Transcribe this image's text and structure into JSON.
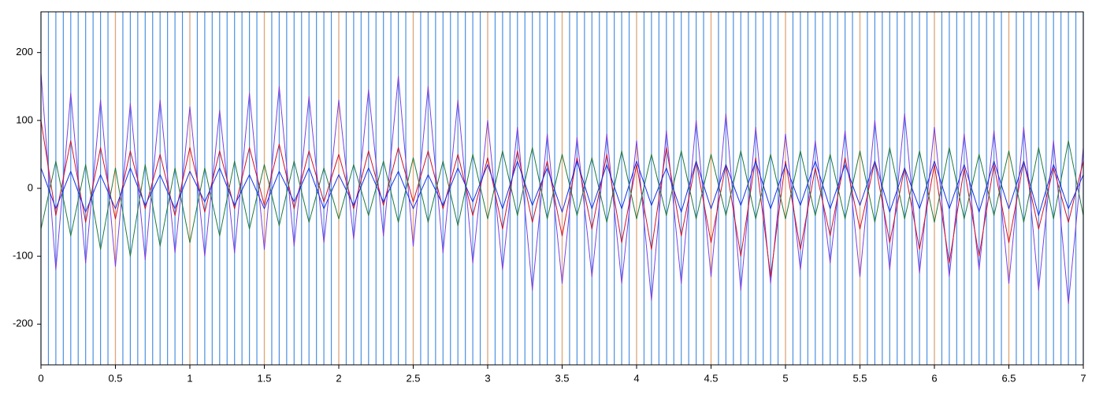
{
  "chart_data": {
    "type": "line",
    "xlim": [
      0,
      7
    ],
    "ylim": [
      -260,
      260
    ],
    "xticks": [
      0,
      0.5,
      1,
      1.5,
      2,
      2.5,
      3,
      3.5,
      4,
      4.5,
      5,
      5.5,
      6,
      6.5,
      7
    ],
    "yticks": [
      200,
      100,
      0,
      -100,
      -200
    ],
    "grid": true,
    "grid_color": "#f5a05a",
    "marker_color": "#4a90e2",
    "markers": [
      0,
      0.05,
      0.1,
      0.15,
      0.2,
      0.25,
      0.3,
      0.35,
      0.4,
      0.45,
      0.5,
      0.55,
      0.6,
      0.65,
      0.7,
      0.75,
      0.8,
      0.85,
      0.9,
      0.95,
      1,
      1.05,
      1.1,
      1.15,
      1.2,
      1.25,
      1.3,
      1.35,
      1.4,
      1.45,
      1.5,
      1.55,
      1.6,
      1.65,
      1.7,
      1.75,
      1.8,
      1.85,
      1.9,
      1.95,
      2,
      2.05,
      2.1,
      2.15,
      2.2,
      2.25,
      2.3,
      2.35,
      2.4,
      2.45,
      2.5,
      2.55,
      2.6,
      2.65,
      2.7,
      2.75,
      2.8,
      2.85,
      2.9,
      2.95,
      3,
      3.05,
      3.1,
      3.15,
      3.2,
      3.25,
      3.3,
      3.35,
      3.4,
      3.45,
      3.5,
      3.55,
      3.6,
      3.65,
      3.7,
      3.75,
      3.8,
      3.85,
      3.9,
      3.95,
      4,
      4.05,
      4.1,
      4.15,
      4.2,
      4.25,
      4.3,
      4.35,
      4.4,
      4.45,
      4.5,
      4.55,
      4.6,
      4.65,
      4.7,
      4.75,
      4.8,
      4.85,
      4.9,
      4.95,
      5,
      5.05,
      5.1,
      5.15,
      5.2,
      5.25,
      5.3,
      5.35,
      5.4,
      5.45,
      5.5,
      5.55,
      5.6,
      5.65,
      5.7,
      5.75,
      5.8,
      5.85,
      5.9,
      5.95,
      6,
      6.05,
      6.1,
      6.15,
      6.2,
      6.25,
      6.3,
      6.35,
      6.4,
      6.45,
      6.5,
      6.55,
      6.6,
      6.65,
      6.7,
      6.75,
      6.8,
      6.85,
      6.9,
      6.95,
      7
    ],
    "x": [
      0,
      0.1,
      0.2,
      0.3,
      0.4,
      0.5,
      0.6,
      0.7,
      0.8,
      0.9,
      1,
      1.1,
      1.2,
      1.3,
      1.4,
      1.5,
      1.6,
      1.7,
      1.8,
      1.9,
      2,
      2.1,
      2.2,
      2.3,
      2.4,
      2.5,
      2.6,
      2.7,
      2.8,
      2.9,
      3,
      3.1,
      3.2,
      3.3,
      3.4,
      3.5,
      3.6,
      3.7,
      3.8,
      3.9,
      4,
      4.1,
      4.2,
      4.3,
      4.4,
      4.5,
      4.6,
      4.7,
      4.8,
      4.9,
      5,
      5.1,
      5.2,
      5.3,
      5.4,
      5.5,
      5.6,
      5.7,
      5.8,
      5.9,
      6,
      6.1,
      6.2,
      6.3,
      6.4,
      6.5,
      6.6,
      6.7,
      6.8,
      6.9,
      7
    ],
    "series": [
      {
        "color": "#7b3fe4",
        "values": [
          170,
          -120,
          140,
          -110,
          130,
          -115,
          125,
          -105,
          130,
          -95,
          120,
          -100,
          115,
          -95,
          140,
          -90,
          150,
          -85,
          135,
          -80,
          130,
          -75,
          145,
          -70,
          165,
          -85,
          150,
          -95,
          130,
          -110,
          100,
          -120,
          90,
          -150,
          80,
          -140,
          75,
          -130,
          80,
          -140,
          70,
          -165,
          85,
          -140,
          100,
          -130,
          110,
          -150,
          90,
          -140,
          80,
          -120,
          70,
          -110,
          85,
          -130,
          100,
          -120,
          110,
          -125,
          90,
          -130,
          80,
          -120,
          85,
          -140,
          90,
          -150,
          70,
          -170,
          60
        ]
      },
      {
        "color": "#d0102a",
        "values": [
          100,
          -40,
          70,
          -50,
          60,
          -45,
          55,
          -30,
          50,
          -40,
          60,
          -35,
          55,
          -30,
          60,
          -25,
          65,
          -30,
          55,
          -20,
          50,
          -30,
          55,
          -25,
          60,
          -20,
          55,
          -30,
          50,
          -40,
          45,
          -60,
          55,
          -50,
          40,
          -70,
          45,
          -60,
          50,
          -80,
          35,
          -90,
          60,
          -70,
          40,
          -80,
          35,
          -100,
          45,
          -130,
          40,
          -90,
          30,
          -70,
          45,
          -60,
          40,
          -80,
          30,
          -90,
          35,
          -110,
          30,
          -100,
          35,
          -80,
          40,
          -60,
          30,
          -50,
          40
        ]
      },
      {
        "color": "#1f7a3a",
        "values": [
          -60,
          40,
          -70,
          35,
          -90,
          30,
          -100,
          35,
          -85,
          30,
          -80,
          30,
          -70,
          40,
          -60,
          35,
          -55,
          40,
          -50,
          30,
          -45,
          35,
          -40,
          40,
          -50,
          45,
          -50,
          40,
          -55,
          50,
          -45,
          55,
          -40,
          60,
          -45,
          50,
          -40,
          45,
          -50,
          55,
          -45,
          50,
          -40,
          55,
          -45,
          50,
          -40,
          55,
          -45,
          50,
          -45,
          55,
          -40,
          50,
          -45,
          55,
          -50,
          60,
          -45,
          55,
          -50,
          60,
          -45,
          50,
          -40,
          55,
          -50,
          60,
          -45,
          70,
          -40
        ]
      },
      {
        "color": "#1a2ee8",
        "values": [
          30,
          -30,
          25,
          -35,
          20,
          -30,
          30,
          -25,
          20,
          -30,
          25,
          -20,
          30,
          -25,
          20,
          -30,
          25,
          -20,
          30,
          -30,
          20,
          -25,
          30,
          -20,
          25,
          -30,
          20,
          -25,
          30,
          -20,
          35,
          -30,
          40,
          -25,
          30,
          -35,
          40,
          -30,
          35,
          -30,
          40,
          -25,
          30,
          -35,
          40,
          -30,
          35,
          -25,
          40,
          -30,
          35,
          -25,
          40,
          -30,
          35,
          -25,
          40,
          -35,
          30,
          -30,
          40,
          -30,
          35,
          -35,
          40,
          -30,
          40,
          -40,
          35,
          -30,
          20
        ]
      }
    ]
  }
}
